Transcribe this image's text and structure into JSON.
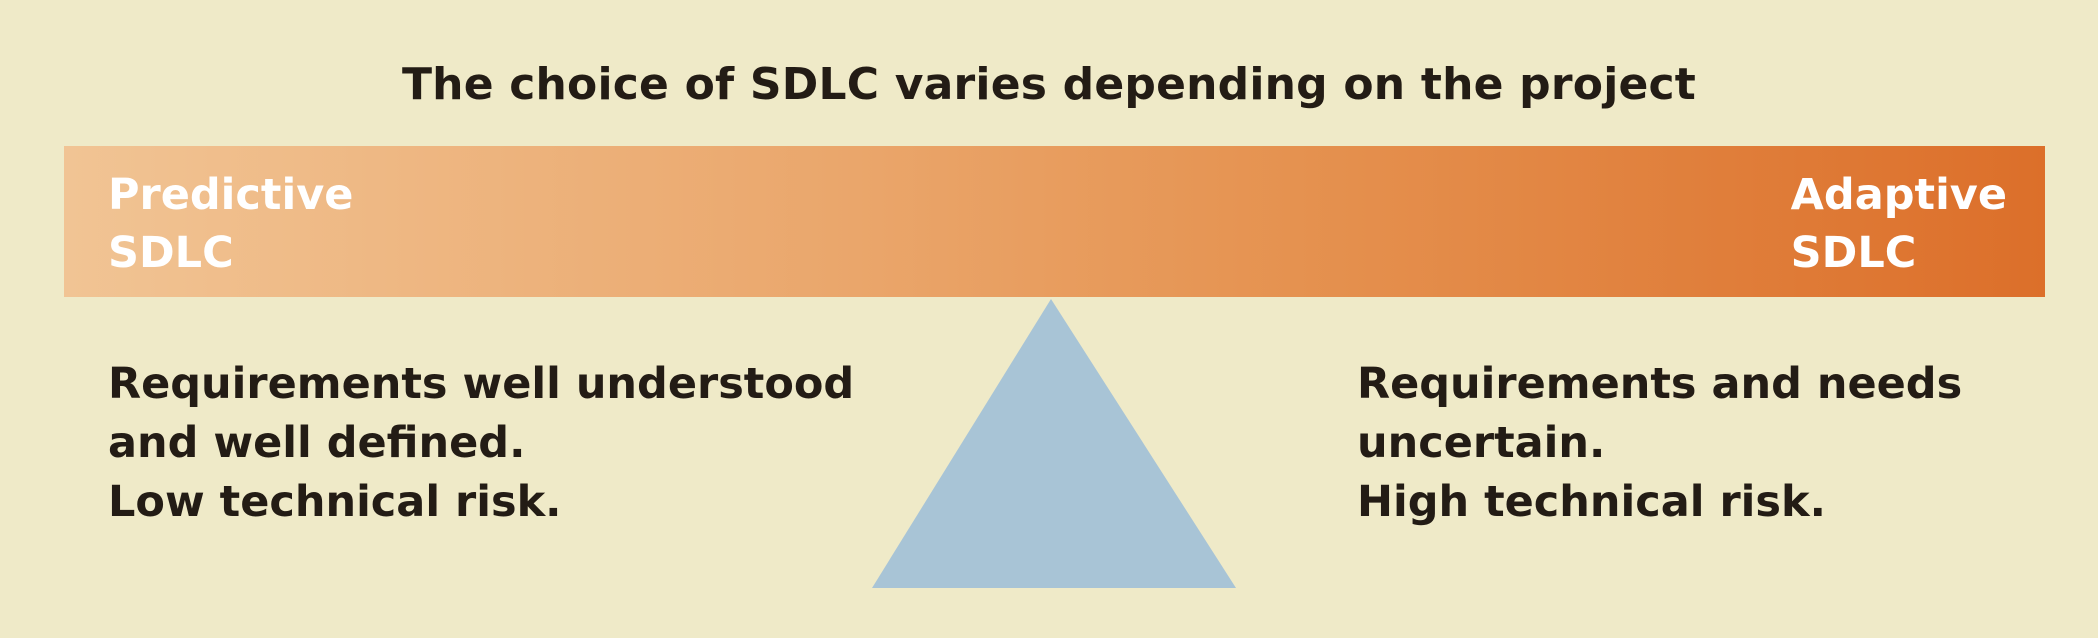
{
  "title": "The choice of SDLC varies depending on the project",
  "beam": {
    "left_label": [
      "Predictive",
      "SDLC"
    ],
    "right_label": [
      "Adaptive",
      "SDLC"
    ],
    "gradient_start": "#f1c494",
    "gradient_end": "#dc6f2a"
  },
  "left_description": [
    "Requirements well understood",
    "and well defined.",
    "Low technical risk."
  ],
  "right_description": [
    "Requirements and needs",
    "uncertain.",
    "High technical risk."
  ],
  "colors": {
    "background": "#efeac8",
    "fulcrum": "#a8c4d6",
    "text": "#231c15"
  }
}
